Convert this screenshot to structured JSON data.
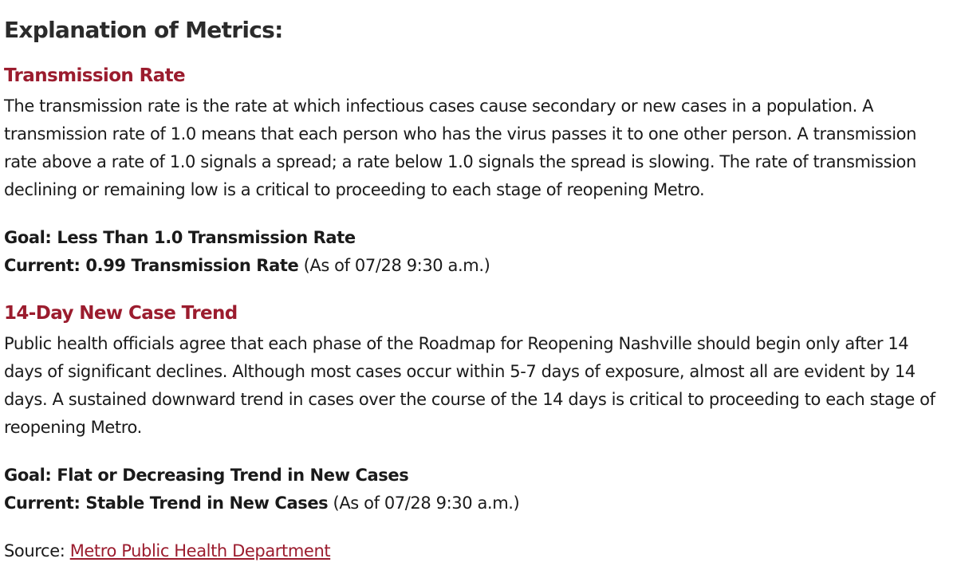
{
  "heading": "Explanation of Metrics:",
  "sections": [
    {
      "title": "Transmission Rate",
      "description": "The transmission rate is the rate at which infectious cases cause secondary or new cases in a population. A transmission rate of 1.0 means that each person who has the virus passes it to one other person. A transmission rate above a rate of 1.0 signals a spread; a rate below 1.0 signals the spread is slowing. The rate of transmission declining or remaining low is a critical to proceeding to each stage of reopening Metro.",
      "goal": "Goal: Less Than 1.0 Transmission Rate",
      "current": "Current: 0.99 Transmission Rate",
      "as_of": " (As of 07/28 9:30 a.m.)"
    },
    {
      "title": "14-Day New Case Trend",
      "description": "Public health officials agree that each phase of the Roadmap for Reopening Nashville should begin only after 14 days of significant declines. Although most cases occur within 5-7 days of exposure, almost all are evident by 14 days. A sustained downward trend in cases over the course of the 14 days is critical to proceeding to each stage of reopening Metro.",
      "goal": "Goal: Flat or Decreasing Trend in New Cases",
      "current": "Current: Stable Trend in New Cases",
      "as_of": " (As of 07/28 9:30 a.m.)"
    }
  ],
  "source": {
    "label": "Source: ",
    "link_text": "Metro Public Health Department"
  },
  "colors": {
    "accent": "#9b1c2e",
    "text": "#1a1a1a",
    "background": "#ffffff"
  }
}
